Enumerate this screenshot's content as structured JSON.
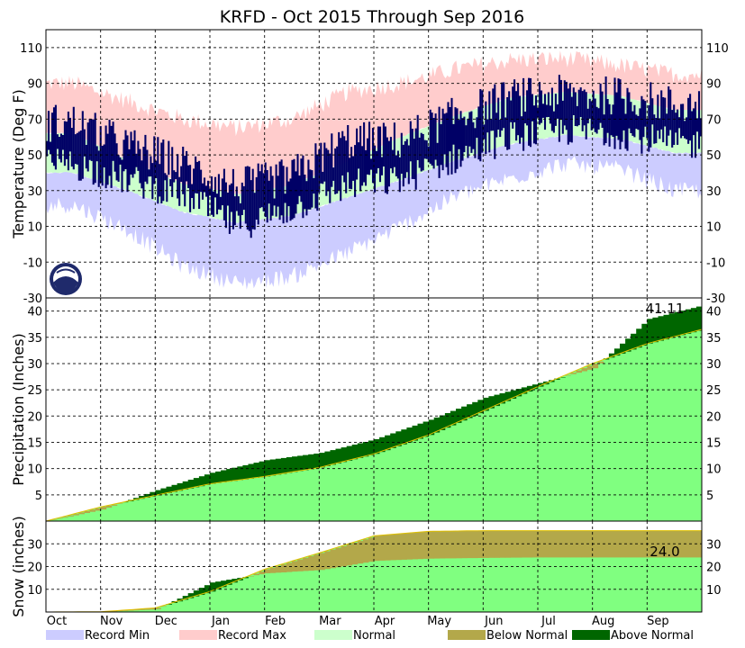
{
  "chart_data": {
    "type": "area",
    "title": "KRFD - Oct 2015 Through Sep 2016",
    "months": [
      "Oct",
      "Nov",
      "Dec",
      "Jan",
      "Feb",
      "Mar",
      "Apr",
      "May",
      "Jun",
      "Jul",
      "Aug",
      "Sep"
    ],
    "colors": {
      "record_min": "#ccccff",
      "record_max": "#ffcccc",
      "normal": "#ccffcc",
      "observed": "#000066",
      "precip_normal": "#80ff80",
      "below_normal": "#b3a84a",
      "above_normal": "#006600"
    },
    "legend": {
      "record_min": "Record Min",
      "record_max": "Record Max",
      "normal": "Normal",
      "below_normal": "Below Normal",
      "above_normal": "Above Normal"
    },
    "panels": [
      {
        "key": "temperature",
        "ylabel": "Temperature (Deg F)",
        "ylim": [
          -30,
          120
        ],
        "ticks": [
          -30,
          -10,
          10,
          30,
          50,
          70,
          90,
          110
        ],
        "record_max_monthly": [
          90,
          80,
          70,
          65,
          70,
          85,
          90,
          98,
          103,
          104,
          100,
          95
        ],
        "normal_high_monthly": [
          62,
          47,
          34,
          28,
          33,
          46,
          60,
          72,
          82,
          85,
          83,
          75
        ],
        "normal_low_monthly": [
          40,
          30,
          18,
          12,
          16,
          26,
          36,
          47,
          56,
          61,
          59,
          51
        ],
        "record_min_monthly": [
          22,
          8,
          -12,
          -22,
          -18,
          -5,
          10,
          27,
          37,
          45,
          42,
          30
        ],
        "observed_high_monthly": [
          68,
          55,
          45,
          32,
          38,
          58,
          58,
          72,
          82,
          84,
          83,
          78
        ],
        "observed_low_monthly": [
          45,
          36,
          28,
          10,
          20,
          33,
          36,
          48,
          60,
          64,
          62,
          56
        ]
      },
      {
        "key": "precipitation",
        "ylabel": "Precipitation (Inches)",
        "ylim": [
          0,
          42.5
        ],
        "ticks": [
          5,
          10,
          15,
          20,
          25,
          30,
          35,
          40
        ],
        "total_label": "41.11",
        "normal_cumulative": [
          0,
          2.7,
          4.9,
          7.1,
          8.5,
          10.2,
          12.8,
          16.4,
          21.0,
          25.6,
          30.0,
          33.8,
          36.5
        ],
        "observed_cumulative": [
          0,
          2.2,
          5.9,
          9.2,
          11.6,
          13.0,
          15.6,
          19.3,
          23.5,
          26.3,
          29.1,
          38.5,
          41.11
        ]
      },
      {
        "key": "snow",
        "ylabel": "Snow (inches)",
        "ylim": [
          0,
          40
        ],
        "ticks": [
          10,
          20,
          30
        ],
        "total_label": "24.0",
        "normal_cumulative": [
          0,
          0.1,
          1.8,
          9.0,
          18.8,
          26.0,
          33.5,
          35.5,
          35.8,
          35.8,
          35.8,
          35.8,
          35.8
        ],
        "observed_cumulative": [
          0,
          0,
          1.2,
          13.0,
          17.0,
          18.5,
          22.5,
          23.5,
          23.8,
          24.0,
          24.0,
          24.0,
          24.0
        ]
      }
    ],
    "grid": true,
    "legend_position": "bottom"
  }
}
